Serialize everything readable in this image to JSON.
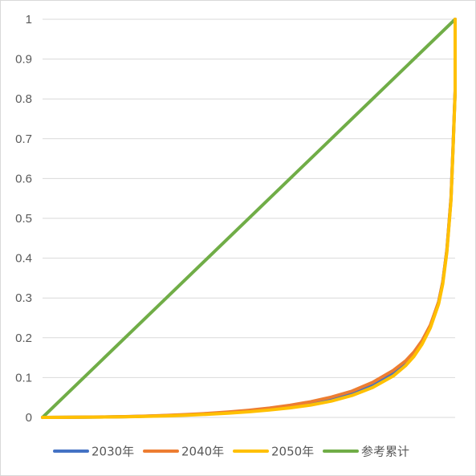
{
  "chart_data": {
    "type": "line",
    "title": "",
    "xlabel": "",
    "ylabel": "",
    "ylim": [
      0,
      1
    ],
    "xlim": [
      0,
      1
    ],
    "yticks": [
      "0",
      "0.1",
      "0.2",
      "0.3",
      "0.4",
      "0.5",
      "0.6",
      "0.7",
      "0.8",
      "0.9",
      "1"
    ],
    "grid": true,
    "legend_position": "bottom",
    "series": [
      {
        "name": "2030年",
        "color": "#4472C4",
        "x": [
          0,
          0.05,
          0.1,
          0.15,
          0.2,
          0.25,
          0.3,
          0.35,
          0.4,
          0.45,
          0.5,
          0.55,
          0.6,
          0.65,
          0.7,
          0.75,
          0.8,
          0.85,
          0.88,
          0.9,
          0.92,
          0.94,
          0.96,
          0.97,
          0.98,
          0.99,
          0.995,
          1.0,
          1.0
        ],
        "y": [
          0,
          0.0003,
          0.0006,
          0.001,
          0.0018,
          0.003,
          0.0045,
          0.0065,
          0.009,
          0.012,
          0.016,
          0.021,
          0.027,
          0.035,
          0.046,
          0.061,
          0.082,
          0.112,
          0.138,
          0.16,
          0.19,
          0.23,
          0.29,
          0.34,
          0.42,
          0.55,
          0.68,
          0.82,
          1.0
        ]
      },
      {
        "name": "2040年",
        "color": "#ED7D31",
        "x": [
          0,
          0.05,
          0.1,
          0.15,
          0.2,
          0.25,
          0.3,
          0.35,
          0.4,
          0.45,
          0.5,
          0.55,
          0.6,
          0.65,
          0.7,
          0.75,
          0.8,
          0.85,
          0.88,
          0.9,
          0.92,
          0.94,
          0.96,
          0.97,
          0.98,
          0.99,
          0.995,
          1.0,
          1.0
        ],
        "y": [
          0,
          0.0003,
          0.0007,
          0.0012,
          0.002,
          0.0033,
          0.005,
          0.0072,
          0.01,
          0.0135,
          0.018,
          0.0235,
          0.0305,
          0.0395,
          0.051,
          0.066,
          0.088,
          0.118,
          0.142,
          0.164,
          0.193,
          0.232,
          0.29,
          0.34,
          0.42,
          0.55,
          0.68,
          0.82,
          1.0
        ]
      },
      {
        "name": "2050年",
        "color": "#FFC000",
        "x": [
          0,
          0.05,
          0.1,
          0.15,
          0.2,
          0.25,
          0.3,
          0.35,
          0.4,
          0.45,
          0.5,
          0.55,
          0.6,
          0.65,
          0.7,
          0.75,
          0.8,
          0.85,
          0.88,
          0.9,
          0.92,
          0.94,
          0.96,
          0.97,
          0.98,
          0.99,
          0.995,
          1.0,
          1.0
        ],
        "y": [
          0,
          0.0002,
          0.0005,
          0.0009,
          0.0015,
          0.0025,
          0.0038,
          0.0055,
          0.0078,
          0.0105,
          0.014,
          0.0185,
          0.024,
          0.031,
          0.041,
          0.055,
          0.075,
          0.104,
          0.13,
          0.153,
          0.184,
          0.225,
          0.285,
          0.335,
          0.415,
          0.545,
          0.675,
          0.815,
          1.0
        ]
      },
      {
        "name": "参考累计",
        "color": "#70AD47",
        "x": [
          0,
          1
        ],
        "y": [
          0,
          1
        ]
      }
    ]
  }
}
